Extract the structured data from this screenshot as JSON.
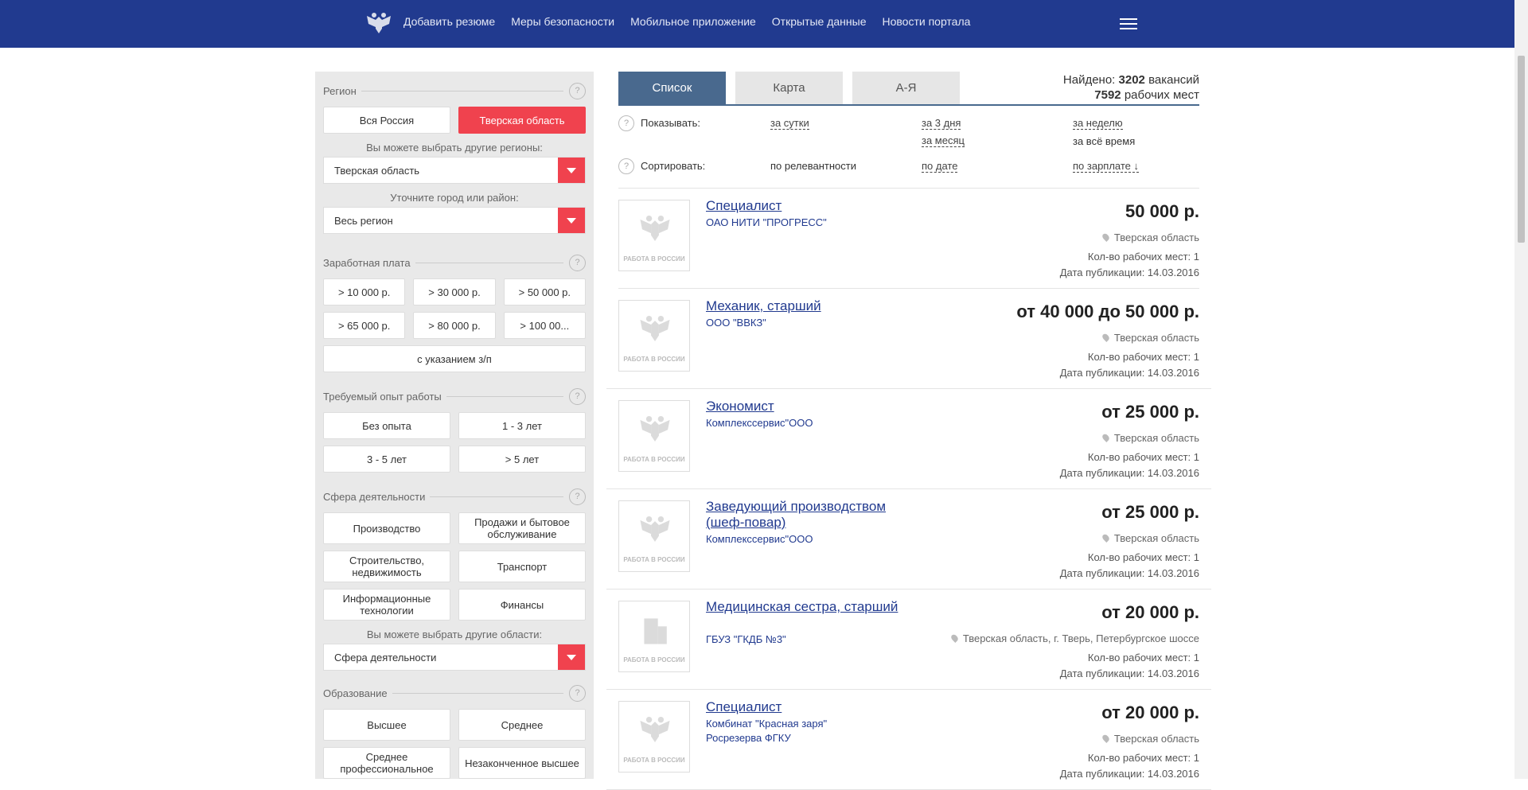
{
  "nav": {
    "items": [
      "Добавить резюме",
      "Меры безопасности",
      "Мобильное приложение",
      "Открытые данные",
      "Новости портала"
    ]
  },
  "sidebar": {
    "region": {
      "title": "Регион",
      "all_russia": "Вся Россия",
      "selected": "Тверская область",
      "other_label": "Вы можете выбрать другие регионы:",
      "region_select": "Тверская область",
      "city_label": "Уточните город или район:",
      "city_select": "Весь регион"
    },
    "salary": {
      "title": "Заработная плата",
      "options": [
        "> 10 000 р.",
        "> 30 000 р.",
        "> 50 000 р.",
        "> 65 000 р.",
        "> 80 000 р.",
        "> 100 00..."
      ],
      "with_salary": "с указанием з/п"
    },
    "experience": {
      "title": "Требуемый опыт работы",
      "options": [
        "Без опыта",
        "1 - 3 лет",
        "3 - 5 лет",
        "> 5 лет"
      ]
    },
    "sphere": {
      "title": "Сфера деятельности",
      "options": [
        "Производство",
        "Продажи и бытовое обслуживание",
        "Строительство, недвижимость",
        "Транспорт",
        "Информационные технологии",
        "Финансы"
      ],
      "other_label": "Вы можете выбрать другие области:",
      "select": "Сфера деятельности"
    },
    "education": {
      "title": "Образование",
      "options": [
        "Высшее",
        "Среднее",
        "Среднее профессиональное",
        "Незаконченное высшее"
      ]
    },
    "help_mark": "?"
  },
  "tabs": [
    "Список",
    "Карта",
    "А-Я"
  ],
  "found": {
    "label": "Найдено:",
    "vacancies_count": "3202",
    "vacancies_word": "вакансий",
    "places_count": "7592",
    "places_word": "рабочих мест"
  },
  "filters": {
    "show_label": "Показывать:",
    "day": "за сутки",
    "three_days": "за 3 дня",
    "week": "за неделю",
    "month": "за месяц",
    "all_time": "за всё время",
    "sort_label": "Сортировать:",
    "relevance": "по релевантности",
    "by_date": "по дате",
    "by_salary": "по зарплате ↓"
  },
  "logo_caption": "РАБОТА В РОССИИ",
  "vacancies": [
    {
      "title": "Специалист",
      "company": "ОАО НИТИ \"ПРОГРЕСС\"",
      "company2": "",
      "salary": "50 000 р.",
      "location": "Тверская область",
      "places": "Кол-во рабочих мест: 1",
      "date": "Дата публикации: 14.03.2016"
    },
    {
      "title": "Механик, старший",
      "company": "ООО \"ВВКЗ\"",
      "company2": "",
      "salary": "от 40 000 до 50 000 р.",
      "location": "Тверская область",
      "places": "Кол-во рабочих мест: 1",
      "date": "Дата публикации: 14.03.2016"
    },
    {
      "title": "Экономист",
      "company": "Комплекссервис\"ООО",
      "company2": "",
      "salary": "от 25 000 р.",
      "location": "Тверская область",
      "places": "Кол-во рабочих мест: 1",
      "date": "Дата публикации: 14.03.2016"
    },
    {
      "title": "Заведующий производством (шеф-повар)",
      "company": "Комплекссервис\"ООО",
      "company2": "",
      "salary": "от 25 000 р.",
      "location": "Тверская область",
      "places": "Кол-во рабочих мест: 1",
      "date": "Дата публикации: 14.03.2016"
    },
    {
      "title": "Медицинская сестра, старший",
      "company": "ГБУЗ \"ГКДБ №3\"",
      "company2": "",
      "salary": "от 20 000 р.",
      "location": "Тверская область, г. Тверь, Петербургское шоссе",
      "places": "Кол-во рабочих мест: 1",
      "date": "Дата публикации: 14.03.2016"
    },
    {
      "title": "Специалист",
      "company": "Комбинат \"Красная заря\"",
      "company2": "Росрезерва ФГКУ",
      "salary": "от 20 000 р.",
      "location": "Тверская область",
      "places": "Кол-во рабочих мест: 1",
      "date": "Дата публикации: 14.03.2016"
    }
  ],
  "colors": {
    "header": "#213a8f",
    "accent": "#f0424e",
    "tab_active": "#49698e"
  }
}
